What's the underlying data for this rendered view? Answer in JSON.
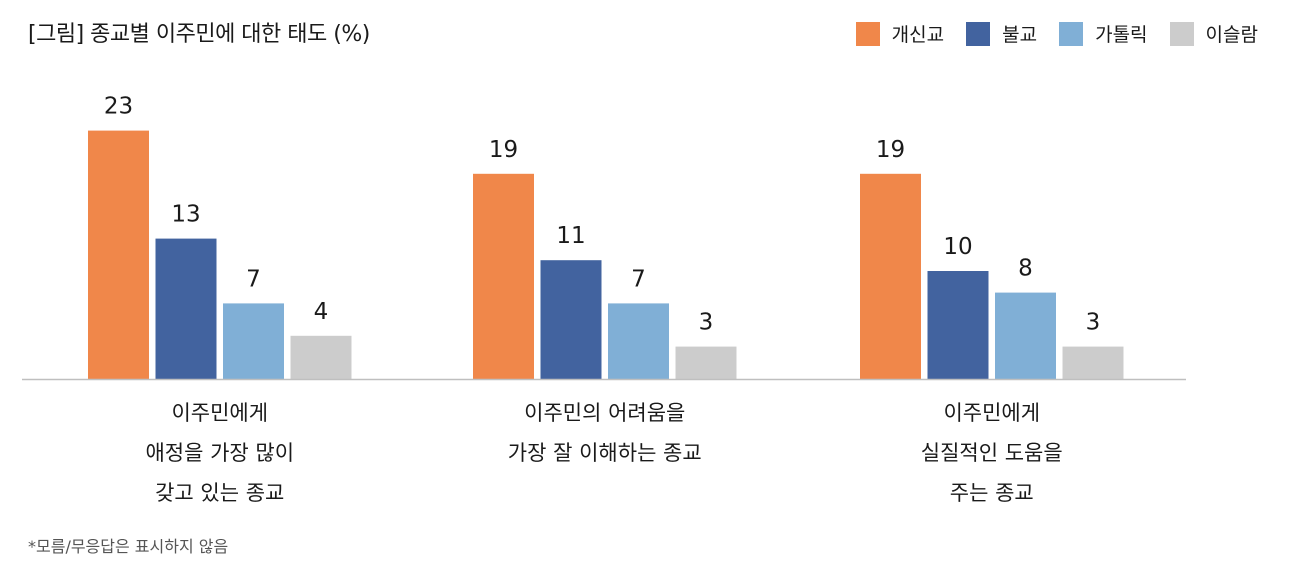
{
  "chart_data": {
    "type": "bar",
    "title": "[그림] 종교별 이주민에 대한 태도 (%)",
    "categories": [
      [
        "이주민에게",
        "애정을 가장 많이",
        "갖고 있는 종교"
      ],
      [
        "이주민의 어려움을",
        "가장 잘 이해하는 종교"
      ],
      [
        "이주민에게",
        "실질적인 도움을",
        "주는 종교"
      ]
    ],
    "series": [
      {
        "name": "개신교",
        "color": "#f0874a",
        "values": [
          23,
          19,
          19
        ]
      },
      {
        "name": "불교",
        "color": "#42639f",
        "values": [
          13,
          11,
          10
        ]
      },
      {
        "name": "가톨릭",
        "color": "#80afd6",
        "values": [
          7,
          7,
          8
        ]
      },
      {
        "name": "이슬람",
        "color": "#cccccc",
        "values": [
          4,
          3,
          3
        ]
      }
    ],
    "legend_position": "top-right",
    "grid": false,
    "ylim": [
      0,
      25
    ],
    "footnote": "*모름/무응답은 표시하지 않음"
  }
}
